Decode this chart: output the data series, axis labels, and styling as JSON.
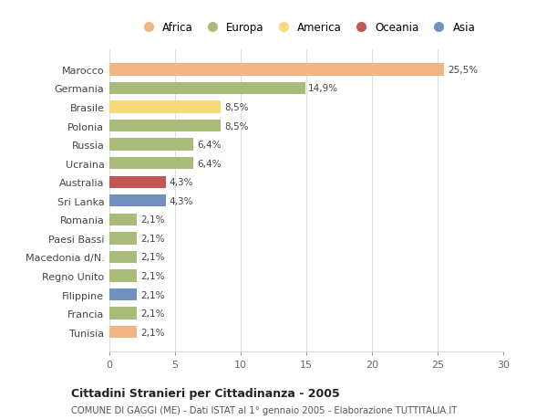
{
  "categories": [
    "Marocco",
    "Germania",
    "Brasile",
    "Polonia",
    "Russia",
    "Ucraina",
    "Australia",
    "Sri Lanka",
    "Romania",
    "Paesi Bassi",
    "Macedonia d/N.",
    "Regno Unito",
    "Filippine",
    "Francia",
    "Tunisia"
  ],
  "values": [
    25.5,
    14.9,
    8.5,
    8.5,
    6.4,
    6.4,
    4.3,
    4.3,
    2.1,
    2.1,
    2.1,
    2.1,
    2.1,
    2.1,
    2.1
  ],
  "labels": [
    "25,5%",
    "14,9%",
    "8,5%",
    "8,5%",
    "6,4%",
    "6,4%",
    "4,3%",
    "4,3%",
    "2,1%",
    "2,1%",
    "2,1%",
    "2,1%",
    "2,1%",
    "2,1%",
    "2,1%"
  ],
  "colors": [
    "#F2B483",
    "#A9BB78",
    "#F5D97A",
    "#A9BB78",
    "#A9BB78",
    "#A9BB78",
    "#C45555",
    "#7090C0",
    "#A9BB78",
    "#A9BB78",
    "#A9BB78",
    "#A9BB78",
    "#7090C0",
    "#A9BB78",
    "#F2B483"
  ],
  "legend_labels": [
    "Africa",
    "Europa",
    "America",
    "Oceania",
    "Asia"
  ],
  "legend_colors": [
    "#F2B483",
    "#A9BB78",
    "#F5D97A",
    "#C45555",
    "#7090C0"
  ],
  "title": "Cittadini Stranieri per Cittadinanza - 2005",
  "subtitle": "COMUNE DI GAGGI (ME) - Dati ISTAT al 1° gennaio 2005 - Elaborazione TUTTITALIA.IT",
  "xlim": [
    0,
    30
  ],
  "xticks": [
    0,
    5,
    10,
    15,
    20,
    25,
    30
  ],
  "background_color": "#ffffff",
  "grid_color": "#dddddd"
}
